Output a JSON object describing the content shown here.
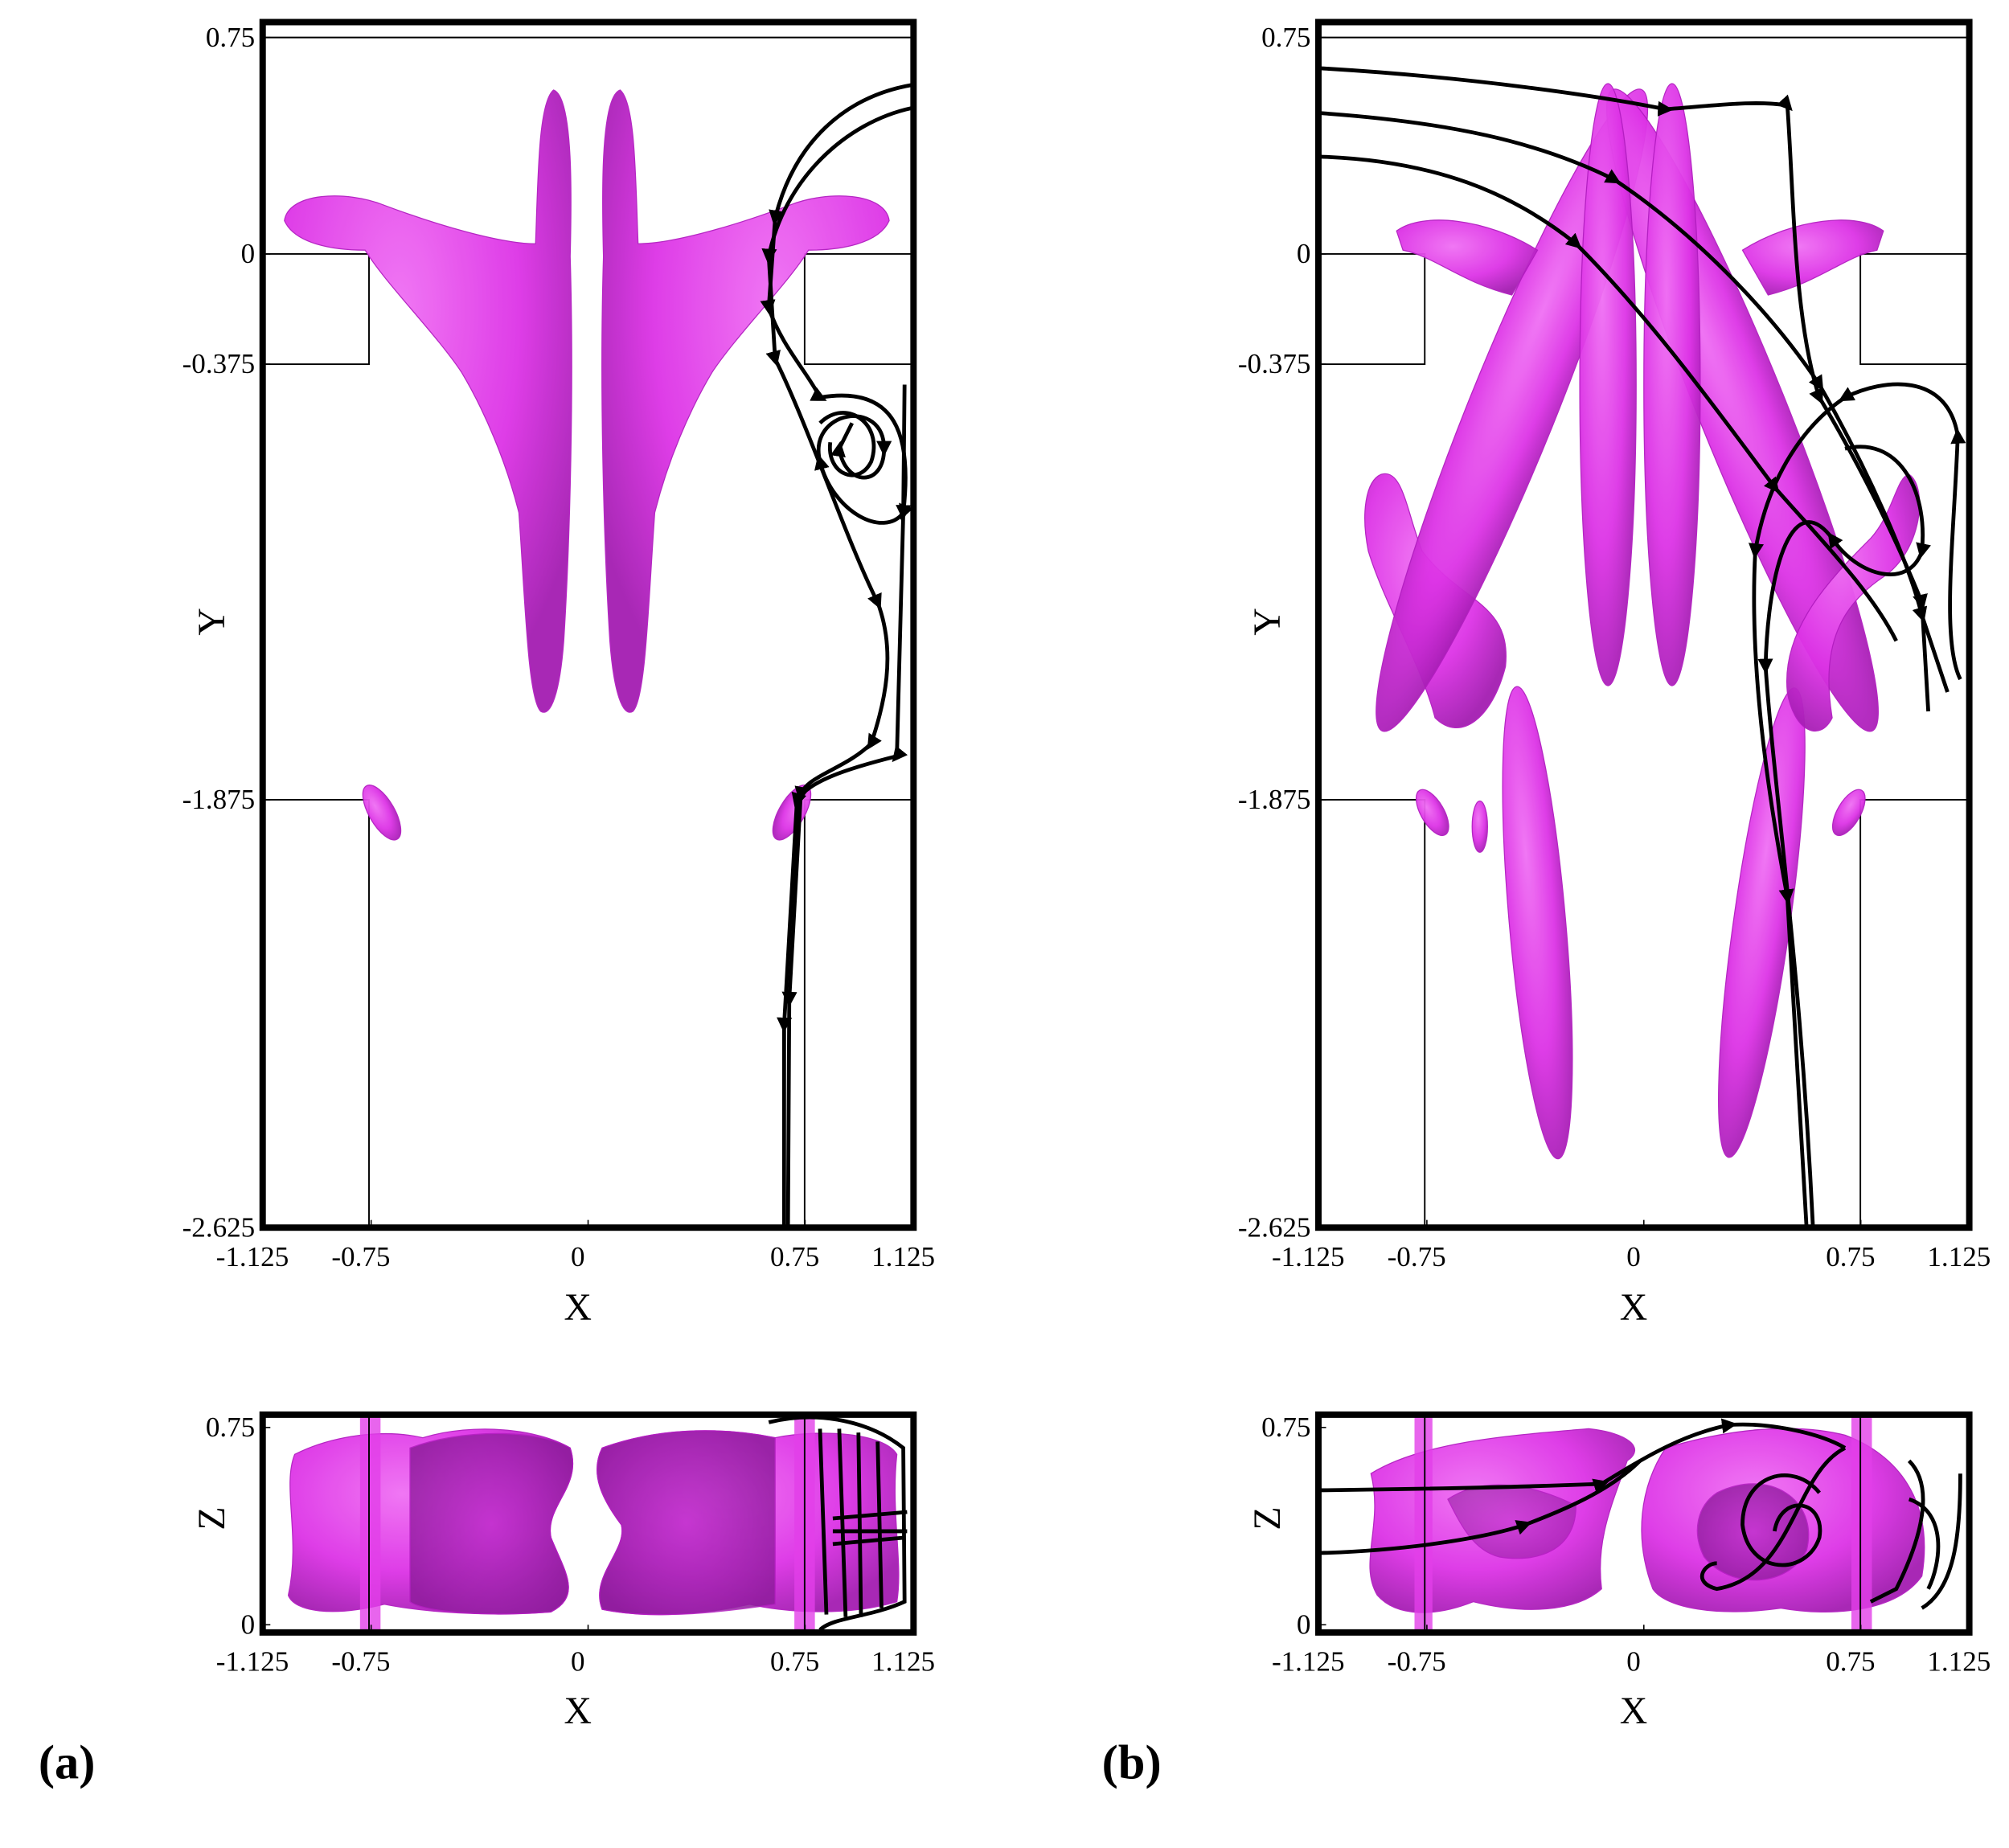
{
  "panels": [
    {
      "label": "(a)",
      "top": {
        "x_label": "X",
        "y_label": "Y",
        "xticks": [
          -1.125,
          -0.75,
          0,
          0.75,
          1.125
        ],
        "yticks": [
          0.75,
          0,
          -0.375,
          -1.875,
          -2.625
        ]
      },
      "bottom": {
        "x_label": "X",
        "y_label": "Z",
        "xticks": [
          -1.125,
          -0.75,
          0,
          0.75,
          1.125
        ],
        "yticks": [
          0.75,
          0
        ]
      }
    },
    {
      "label": "(b)",
      "top": {
        "x_label": "X",
        "y_label": "Y",
        "xticks": [
          -1.125,
          -0.75,
          0,
          0.75,
          1.125
        ],
        "yticks": [
          0.75,
          0,
          -0.375,
          -1.875,
          -2.625
        ]
      },
      "bottom": {
        "x_label": "X",
        "y_label": "Z",
        "xticks": [
          -1.125,
          -0.75,
          0,
          0.75,
          1.125
        ],
        "yticks": [
          0.75,
          0
        ]
      }
    }
  ]
}
